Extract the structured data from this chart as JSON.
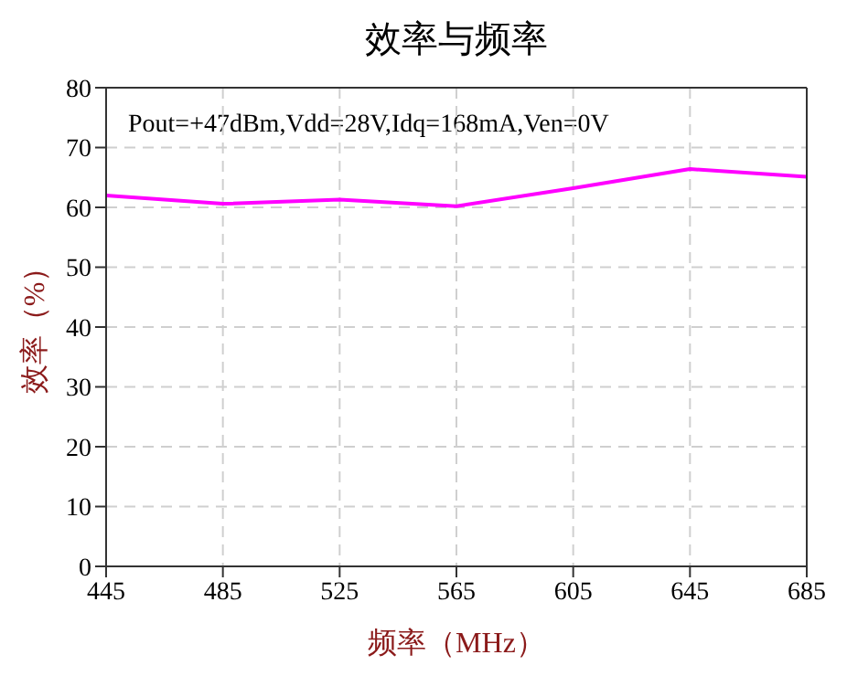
{
  "chart_data": {
    "type": "line",
    "title": "效率与频率",
    "xlabel": "频率（MHz）",
    "ylabel": "效率（%）",
    "annotations": [
      "Pout=+47dBm,Vdd=28V,Idq=168mA,Ven=0V"
    ],
    "x": [
      445,
      485,
      525,
      565,
      605,
      645,
      685
    ],
    "series": [
      {
        "color": "#ff00ff",
        "values": [
          62.0,
          60.6,
          61.3,
          60.2,
          63.2,
          66.4,
          65.1
        ]
      }
    ],
    "xlim": [
      445,
      685
    ],
    "xticks": [
      445,
      485,
      525,
      565,
      605,
      645,
      685
    ],
    "ylim": [
      0,
      80
    ],
    "yticks": [
      0,
      10,
      20,
      30,
      40,
      50,
      60,
      70,
      80
    ],
    "grid": true,
    "marker": "none",
    "line_style": "solid"
  }
}
